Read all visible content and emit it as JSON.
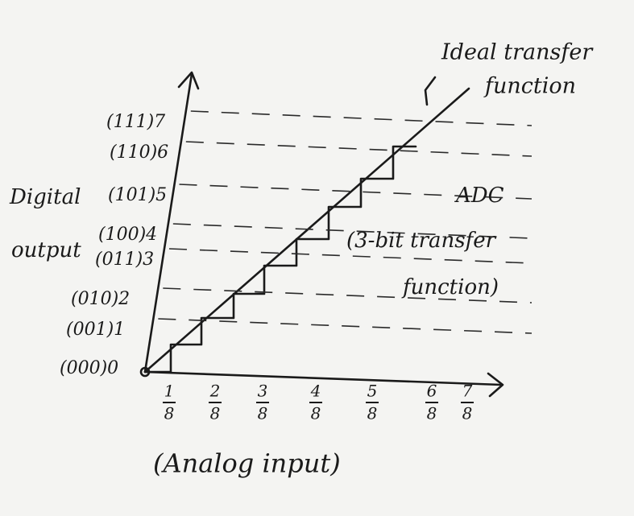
{
  "diagram": {
    "y_axis_title": [
      "Digital",
      "output"
    ],
    "y_levels": [
      "(000)0",
      "(001)1",
      "(010)2",
      "(011)3",
      "(100)4",
      "(101)5",
      "(110)6",
      "(111)7"
    ],
    "x_labels": [
      {
        "numerator": "1",
        "denominator": "8"
      },
      {
        "numerator": "2",
        "denominator": "8"
      },
      {
        "numerator": "3",
        "denominator": "8"
      },
      {
        "numerator": "4",
        "denominator": "8"
      },
      {
        "numerator": "5",
        "denominator": "8"
      },
      {
        "numerator": "6",
        "denominator": "8"
      },
      {
        "numerator": "7",
        "denominator": "8"
      }
    ],
    "x_axis_title": "(Analog input)",
    "ideal_label": [
      "Ideal transfer",
      "function"
    ],
    "adc_label": [
      "ADC",
      "(3-bit transfer",
      "function)"
    ]
  }
}
